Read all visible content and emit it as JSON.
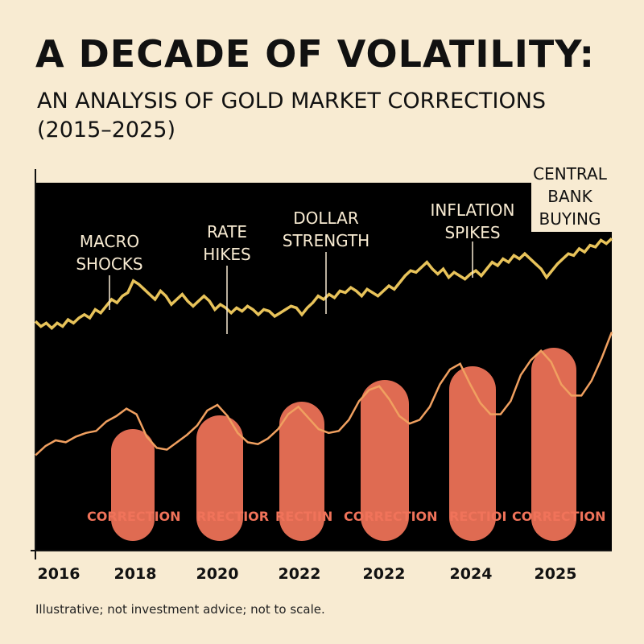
{
  "title": "A DECADE OF VOLATILITY:",
  "subtitle": "AN ANALYSIS OF GOLD MARKET CORRECTIONS (2015–2025)",
  "footnote": "Illustrative; not investment advice; not to scale.",
  "colors": {
    "background": "#f8ebd2",
    "plot_background": "#000000",
    "gold_line": "#e8c35a",
    "lower_line": "#f0a060",
    "correction_fill": "#df6b52"
  },
  "chart_data": {
    "type": "line",
    "x_tick_labels": [
      "2016",
      "2018",
      "2020",
      "2022",
      "2022",
      "2024",
      "2025"
    ],
    "series": [
      {
        "values": [
          48,
          45,
          47,
          44,
          47,
          45,
          49,
          47,
          50,
          52,
          50,
          55,
          53,
          57,
          61,
          59,
          63,
          65,
          72,
          70,
          67,
          64,
          61,
          66,
          63,
          58,
          61,
          64,
          60,
          57,
          60,
          63,
          60,
          55,
          58,
          56,
          53,
          56,
          54,
          57,
          55,
          52,
          55,
          54,
          51,
          53,
          55,
          57,
          56,
          52,
          56,
          59,
          63,
          61,
          64,
          62,
          66,
          65,
          68,
          66,
          63,
          67,
          65,
          63,
          66,
          69,
          67,
          71,
          75,
          78,
          77,
          80,
          83,
          79,
          76,
          79,
          74,
          77,
          75,
          73,
          76,
          78,
          75,
          79,
          83,
          81,
          85,
          83,
          87,
          85,
          88,
          85,
          82,
          79,
          74,
          78,
          82,
          85,
          88,
          87,
          91,
          89,
          93,
          92,
          96,
          94,
          97
        ]
      },
      {
        "values": [
          20,
          25,
          28,
          27,
          30,
          32,
          33,
          38,
          41,
          45,
          42,
          30,
          24,
          23,
          27,
          31,
          36,
          44,
          47,
          41,
          32,
          27,
          26,
          29,
          34,
          42,
          46,
          40,
          34,
          32,
          33,
          39,
          49,
          55,
          57,
          50,
          41,
          37,
          39,
          46,
          58,
          66,
          69,
          58,
          48,
          42,
          42,
          49,
          63,
          71,
          76,
          70,
          58,
          52,
          52,
          60,
          72,
          86
        ]
      }
    ],
    "annotations": [
      "MACRO SHOCKS",
      "RATE HIKES",
      "DOLLAR STRENGTH",
      "INFLATION SPIKES",
      "CENTRAL BANK BUYING"
    ],
    "corrections": [
      "CORRECTION",
      "RRECTIOR",
      "RECTIIN",
      "CORRECTION",
      "RECTIOI",
      "CORRECTION"
    ]
  }
}
